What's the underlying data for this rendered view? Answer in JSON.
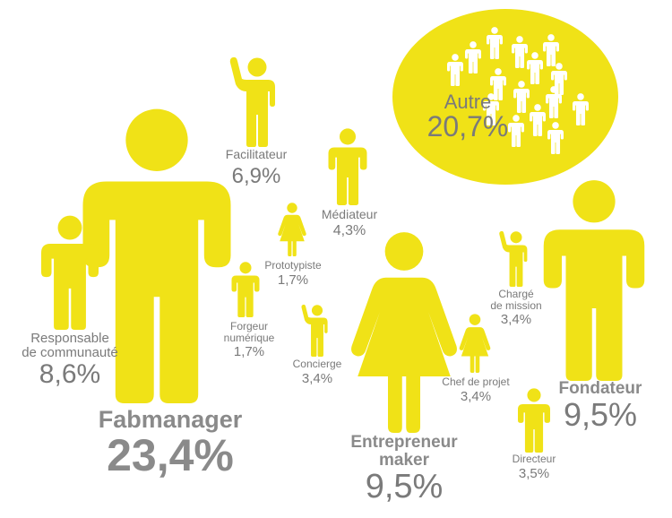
{
  "colors": {
    "figure": "#F0E217",
    "text": "#7A7A7A",
    "figure_on_bubble": "#FFFFFF"
  },
  "chart_data": {
    "type": "pictogram",
    "unit": "%",
    "categories": [
      {
        "id": "fabmanager",
        "label": "Fabmanager",
        "value_label": "23,4%",
        "value": 23.4,
        "figure": "man"
      },
      {
        "id": "autre",
        "label": "Autre",
        "value_label": "20,7%",
        "value": 20.7,
        "figure": "group"
      },
      {
        "id": "entrepreneur",
        "label": "Entrepreneur maker",
        "label_lines": [
          "Entrepreneur",
          "maker"
        ],
        "value_label": "9,5%",
        "value": 9.5,
        "figure": "woman"
      },
      {
        "id": "fondateur",
        "label": "Fondateur",
        "value_label": "9,5%",
        "value": 9.5,
        "figure": "man"
      },
      {
        "id": "responsable",
        "label": "Responsable de communauté",
        "label_lines": [
          "Responsable",
          "de communauté"
        ],
        "value_label": "8,6%",
        "value": 8.6,
        "figure": "man"
      },
      {
        "id": "facilitateur",
        "label": "Facilitateur",
        "value_label": "6,9%",
        "value": 6.9,
        "figure": "wave"
      },
      {
        "id": "mediateur",
        "label": "Médiateur",
        "value_label": "4,3%",
        "value": 4.3,
        "figure": "man"
      },
      {
        "id": "directeur",
        "label": "Directeur",
        "value_label": "3,5%",
        "value": 3.5,
        "figure": "man"
      },
      {
        "id": "concierge",
        "label": "Concierge",
        "value_label": "3,4%",
        "value": 3.4,
        "figure": "wave"
      },
      {
        "id": "charge",
        "label": "Chargé de mission",
        "label_lines": [
          "Chargé",
          "de mission"
        ],
        "value_label": "3,4%",
        "value": 3.4,
        "figure": "wave"
      },
      {
        "id": "chef",
        "label": "Chef de projet",
        "value_label": "3,4%",
        "value": 3.4,
        "figure": "woman"
      },
      {
        "id": "prototypiste",
        "label": "Prototypiste",
        "value_label": "1,7%",
        "value": 1.7,
        "figure": "woman"
      },
      {
        "id": "forgeur",
        "label": "Forgeur numérique",
        "label_lines": [
          "Forgeur",
          "numérique"
        ],
        "value_label": "1,7%",
        "value": 1.7,
        "figure": "man"
      }
    ]
  }
}
